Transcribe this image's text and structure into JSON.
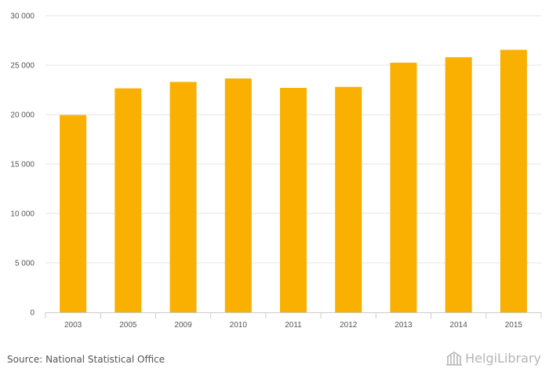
{
  "chart_data": {
    "type": "bar",
    "categories": [
      "2003",
      "2005",
      "2009",
      "2010",
      "2011",
      "2012",
      "2013",
      "2014",
      "2015"
    ],
    "values": [
      19950,
      22650,
      23300,
      23650,
      22700,
      22800,
      25250,
      25800,
      26550
    ],
    "y_ticks": [
      0,
      5000,
      10000,
      15000,
      20000,
      25000,
      30000
    ],
    "y_tick_labels": [
      "0",
      "5 000",
      "10 000",
      "15 000",
      "20 000",
      "25 000",
      "30 000"
    ],
    "ylim": [
      0,
      30000
    ],
    "grid": true,
    "bar_color": "#f9b000",
    "grid_color": "#e6e6e6"
  },
  "footer": {
    "source": "Source: National Statistical Office",
    "brand": "HelgiLibrary",
    "brand_icon": "library-building-icon"
  }
}
